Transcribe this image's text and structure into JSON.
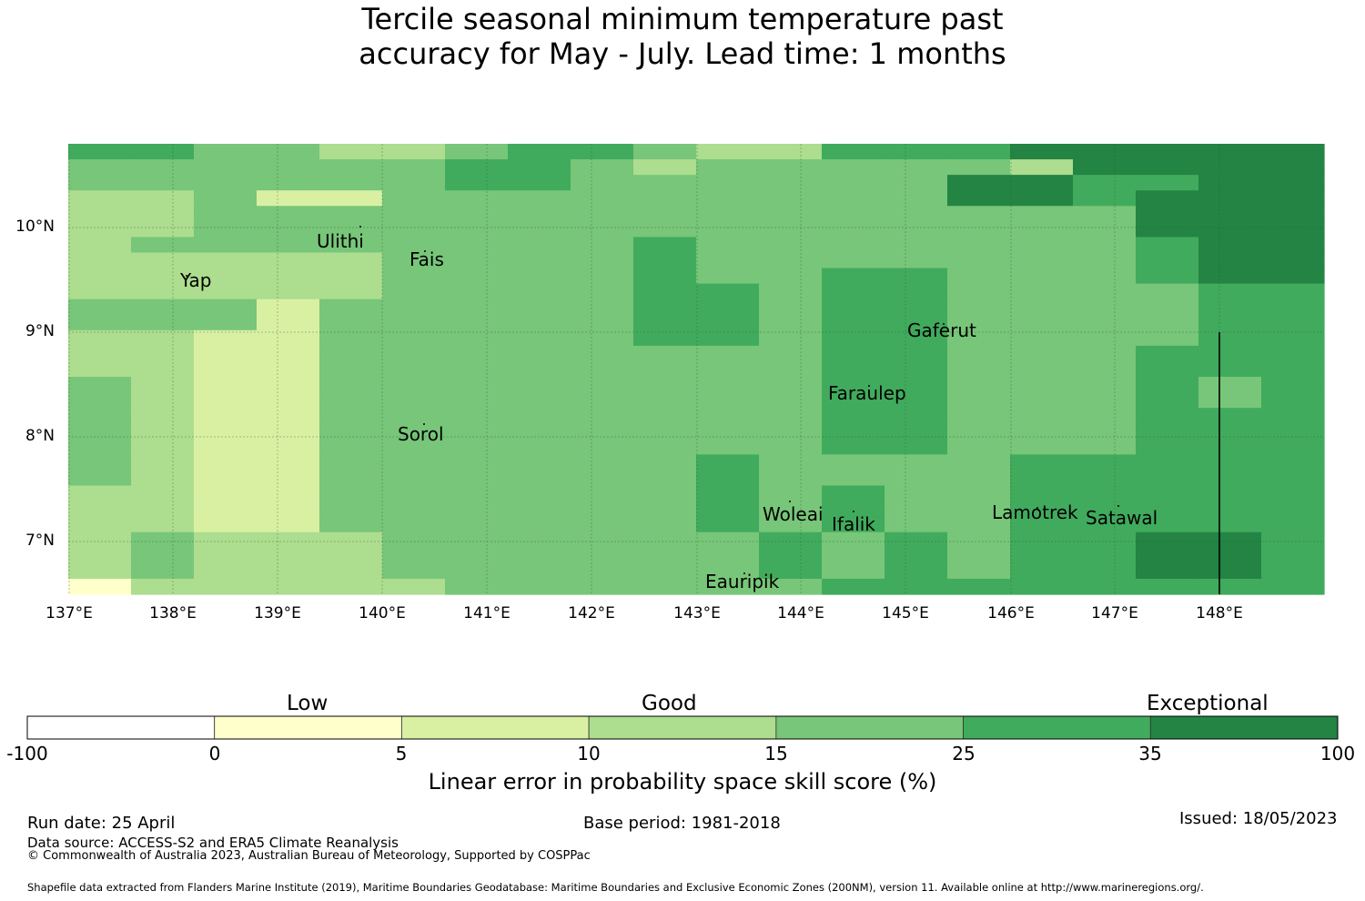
{
  "title_line1": "Tercile seasonal minimum temperature past",
  "title_line2": "accuracy for May - July. Lead time: 1 months",
  "colors": {
    "neg": "#ffffff",
    "c0_5": "#ffffcc",
    "c5_10": "#d9f0a3",
    "c10_15": "#addd8e",
    "c15_25": "#78c679",
    "c25_35": "#41ab5d",
    "c35_100": "#238443"
  },
  "map": {
    "lat_labels": [
      "10°N",
      "9°N",
      "8°N",
      "7°N"
    ],
    "lon_labels": [
      "137°E",
      "138°E",
      "139°E",
      "140°E",
      "141°E",
      "142°E",
      "143°E",
      "144°E",
      "145°E",
      "146°E",
      "147°E",
      "148°E"
    ],
    "places": {
      "ulithi": "Ulithi",
      "fais": "Fais",
      "yap": "Yap",
      "gaferut": "Gaferut",
      "faraulep": "Faraulep",
      "sorol": "Sorol",
      "woleai": "Woleai",
      "ifalik": "Ifalik",
      "lamotrek": "Lamotrek",
      "satawal": "Satawal",
      "eauripik": "Eauripik"
    },
    "grid_category_rows": [
      "55443345543355566666",
      "44444455434444436666",
      "44444455444444665566",
      "33422444444444665666",
      "33444444444444444666",
      "33444444444444444666",
      "34444444454444444566",
      "33333444454444444566",
      "33333444454455444566",
      "33333444455455444455",
      "44424444455455444455",
      "44424444455455444455",
      "33224444455455444455",
      "33224444444455444555",
      "33224444444455444555",
      "43224444444455444545",
      "43224444444455444545",
      "43224444444455444555",
      "43224444444455444555",
      "43224444444455444555",
      "43224444445444455555",
      "43224444445444455555",
      "33224444445454455555",
      "33224444445454455555",
      "33224444445454455555",
      "34333444444545455665",
      "34333444444545455665",
      "34333444444545455665",
      "13333344444455555555"
    ]
  },
  "colorbar": {
    "categories": [
      "Low",
      "Good",
      "Exceptional"
    ],
    "ticks": [
      "-100",
      "0",
      "5",
      "10",
      "15",
      "25",
      "35",
      "100"
    ],
    "title": "Linear error in probability space skill score (%)"
  },
  "footer": {
    "run_date": "Run date: 25 April",
    "base_period": "Base period: 1981-2018",
    "issued": "Issued: 18/05/2023",
    "data_source": "Data source: ACCESS-S2 and ERA5 Climate Reanalysis",
    "copyright": "© Commonwealth of Australia 2023, Australian Bureau of Meteorology, Supported by COSPPac",
    "shapefile": "Shapefile data extracted from Flanders Marine Institute (2019), Maritime Boundaries Geodatabase: Maritime Boundaries and Exclusive Economic Zones (200NM), version 11. Available online at http://www.marineregions.org/."
  }
}
